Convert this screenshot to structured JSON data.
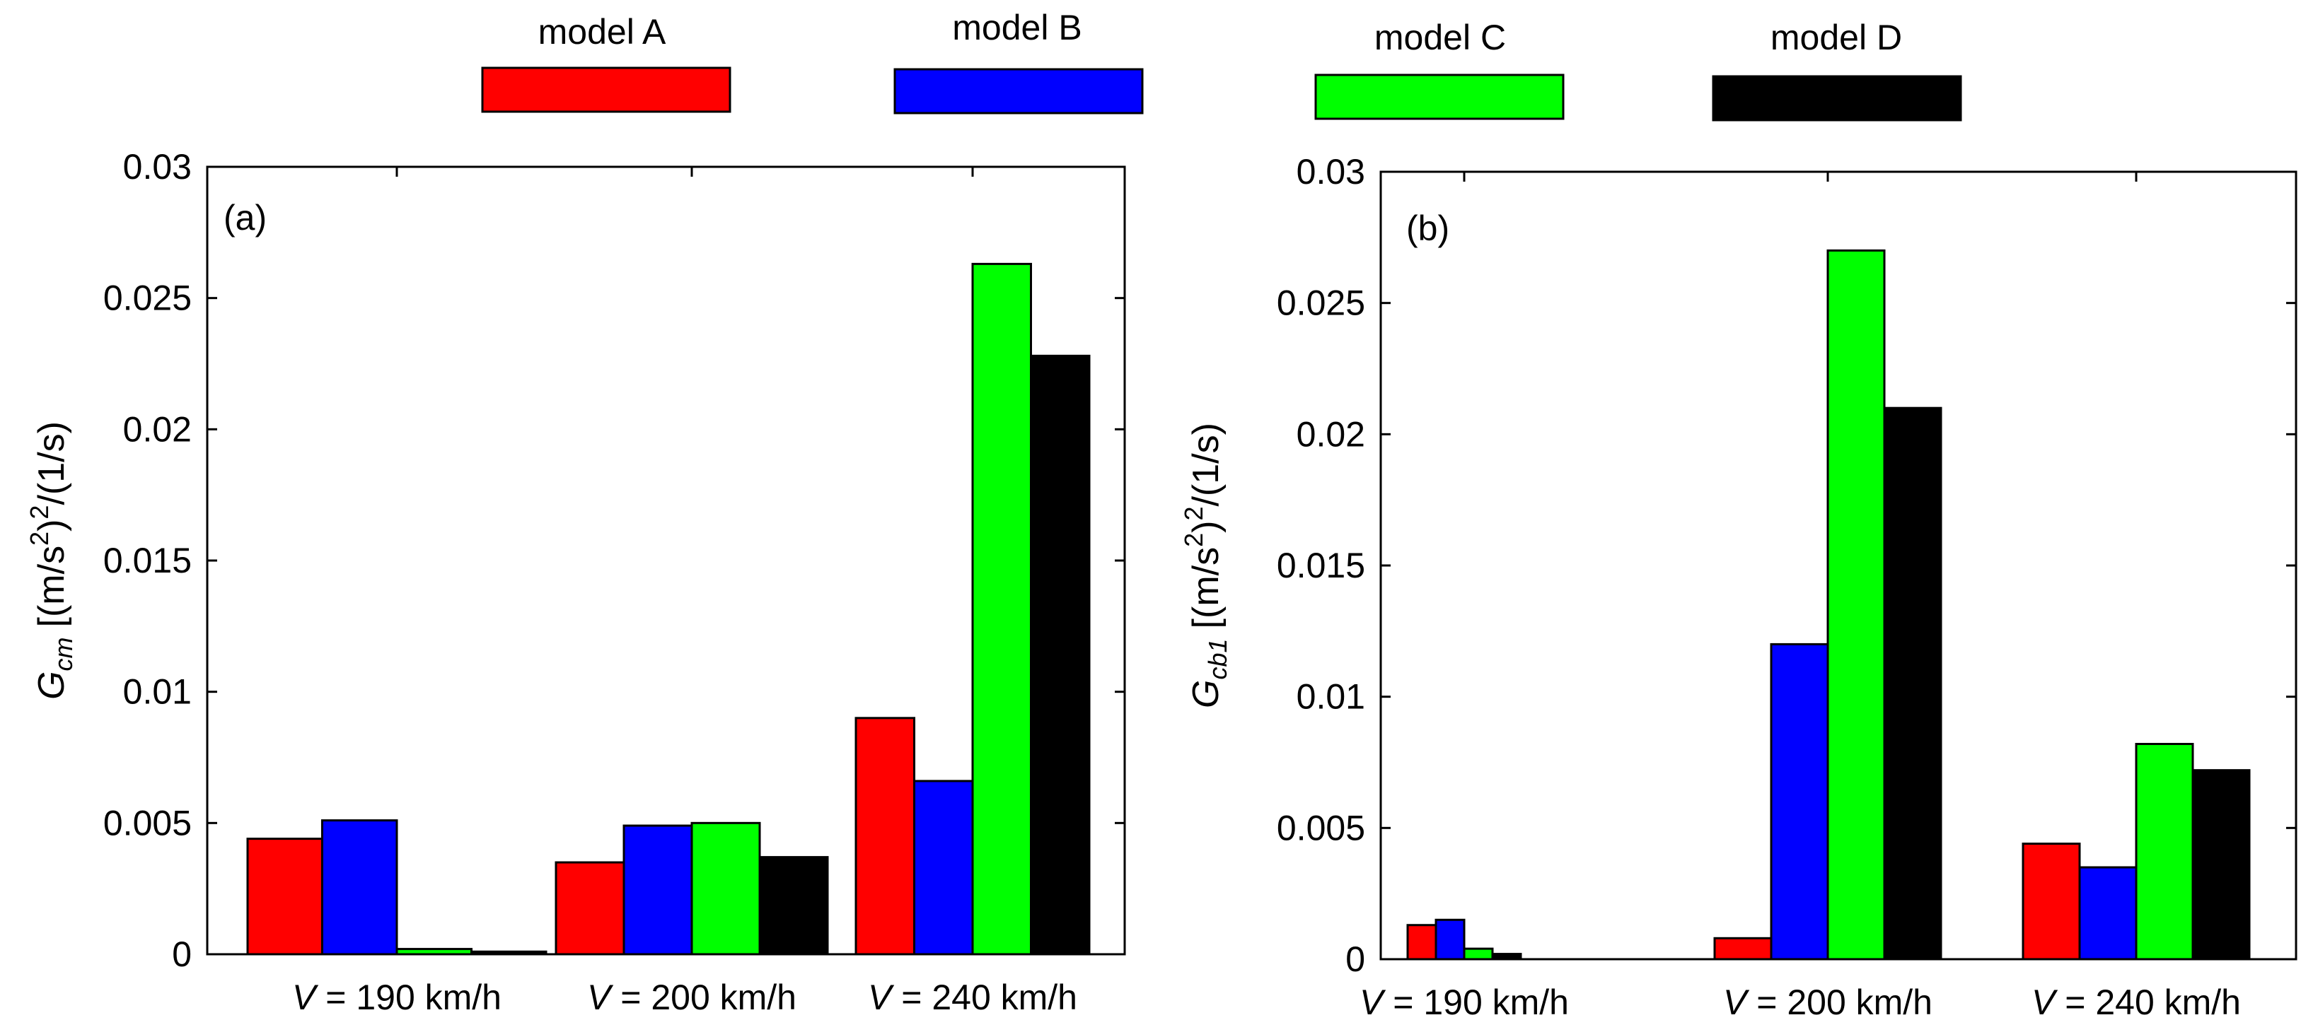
{
  "legend": [
    {
      "label": "model A",
      "color": "#ff0000"
    },
    {
      "label": "model B",
      "color": "#0000ff"
    },
    {
      "label": "model C",
      "color": "#00ff00"
    },
    {
      "label": "model D",
      "color": "#000000"
    }
  ],
  "chart_data": [
    {
      "type": "bar",
      "panel": "(a)",
      "ylabel_symbol": "G",
      "ylabel_subscript": "cm",
      "ylabel_units": "[(m/s",
      "ylabel_units_sup": "2",
      "ylabel_units_mid": ")",
      "ylabel_units_sup2": "2",
      "ylabel_units_end": "/(1/s)",
      "ylim": [
        0,
        0.03
      ],
      "yticks": [
        "0",
        "0.005",
        "0.01",
        "0.015",
        "0.02",
        "0.025",
        "0.03"
      ],
      "categories": [
        {
          "var": "V",
          "text": " = 190 km/h"
        },
        {
          "var": "V",
          "text": " = 200 km/h"
        },
        {
          "var": "V",
          "text": " = 240 km/h"
        }
      ],
      "series": [
        {
          "name": "model A",
          "values": [
            0.0044,
            0.0035,
            0.009
          ]
        },
        {
          "name": "model B",
          "values": [
            0.0051,
            0.0049,
            0.0066
          ]
        },
        {
          "name": "model C",
          "values": [
            0.0002,
            0.005,
            0.0263
          ]
        },
        {
          "name": "model D",
          "values": [
            0.0001,
            0.0037,
            0.0228
          ]
        }
      ]
    },
    {
      "type": "bar",
      "panel": "(b)",
      "ylabel_symbol": "G",
      "ylabel_subscript": "cb1",
      "ylabel_units": "[(m/s",
      "ylabel_units_sup": "2",
      "ylabel_units_mid": ")",
      "ylabel_units_sup2": "2",
      "ylabel_units_end": "/(1/s)",
      "ylim": [
        0,
        0.03
      ],
      "yticks": [
        "0",
        "0.005",
        "0.01",
        "0.015",
        "0.02",
        "0.025",
        "0.03"
      ],
      "categories": [
        {
          "var": "V",
          "text": " = 190 km/h"
        },
        {
          "var": "V",
          "text": " = 200 km/h"
        },
        {
          "var": "V",
          "text": " = 240 km/h"
        }
      ],
      "series": [
        {
          "name": "model A",
          "values": [
            0.0013,
            0.0008,
            0.0044
          ]
        },
        {
          "name": "model B",
          "values": [
            0.0015,
            0.012,
            0.0035
          ]
        },
        {
          "name": "model C",
          "values": [
            0.0004,
            0.027,
            0.0082
          ]
        },
        {
          "name": "model D",
          "values": [
            0.0002,
            0.021,
            0.0072
          ]
        }
      ]
    }
  ]
}
